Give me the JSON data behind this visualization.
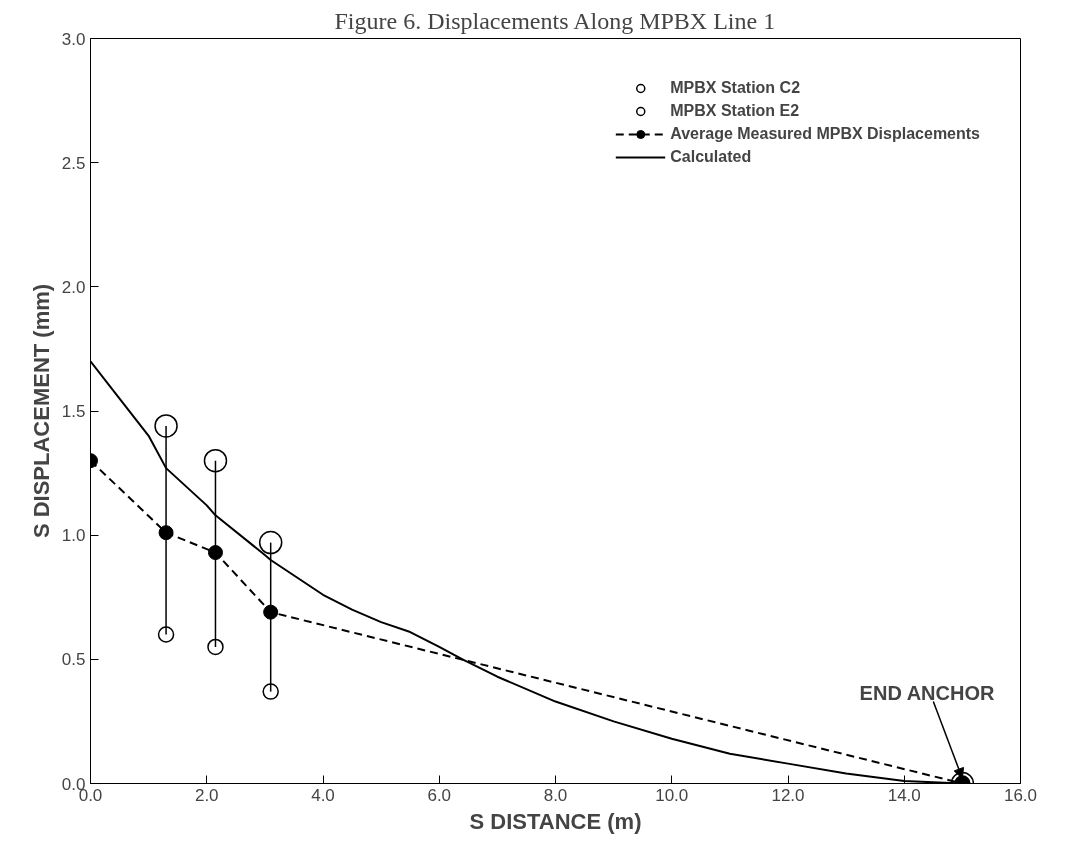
{
  "chart_data": {
    "type": "line",
    "title": "Figure 6. Displacements Along MPBX Line 1",
    "xlabel": "S DISTANCE (m)",
    "ylabel": "S DISPLACEMENT (mm)",
    "xlim": [
      0,
      16
    ],
    "ylim": [
      0,
      3
    ],
    "xticks": [
      {
        "value": 0,
        "label": "0.0"
      },
      {
        "value": 2,
        "label": "2.0"
      },
      {
        "value": 4,
        "label": "4.0"
      },
      {
        "value": 6,
        "label": "6.0"
      },
      {
        "value": 8,
        "label": "8.0"
      },
      {
        "value": 10,
        "label": "10.0"
      },
      {
        "value": 12,
        "label": "12.0"
      },
      {
        "value": 14,
        "label": "14.0"
      },
      {
        "value": 16,
        "label": "16.0"
      }
    ],
    "yticks": [
      {
        "value": 0,
        "label": "0.0"
      },
      {
        "value": 0.5,
        "label": "0.5"
      },
      {
        "value": 1,
        "label": "1.0"
      },
      {
        "value": 1.5,
        "label": "1.5"
      },
      {
        "value": 2,
        "label": "2.0"
      },
      {
        "value": 2.5,
        "label": "2.5"
      },
      {
        "value": 3,
        "label": "3.0"
      }
    ],
    "grid": false,
    "legend": "top right",
    "series": [
      {
        "name": "MPBX Station C2",
        "type": "scatter",
        "marker": "circle",
        "color": "#000000",
        "x": [
          1.3,
          2.15,
          3.1,
          15
        ],
        "values": [
          1.44,
          1.3,
          0.97,
          0
        ]
      },
      {
        "name": "MPBX Station E2",
        "type": "scatter",
        "marker": "circle",
        "color": "#000000",
        "x": [
          1.3,
          2.15,
          3.1,
          15
        ],
        "values": [
          0.6,
          0.55,
          0.37,
          0
        ]
      },
      {
        "name": "Average Measured MPBX Displacements",
        "marker": "circle",
        "line_style": "dashed",
        "color": "#000000",
        "x": [
          0,
          1.3,
          2.15,
          3.1,
          15
        ],
        "values": [
          1.3,
          1.01,
          0.93,
          0.69,
          0
        ],
        "errors": [
          null,
          [
            0.6,
            1.44
          ],
          [
            0.55,
            1.3
          ],
          [
            0.37,
            0.97
          ],
          null
        ]
      },
      {
        "name": "Calculated",
        "marker": "none",
        "line_style": "solid",
        "color": "#000000",
        "x": [
          0,
          0.5,
          1,
          1.3,
          2,
          2.15,
          3,
          3.1,
          4,
          4.5,
          5,
          5.5,
          6,
          6.4,
          7,
          8,
          9,
          10,
          11,
          12,
          13,
          14,
          15
        ],
        "values": [
          1.7,
          1.55,
          1.4,
          1.27,
          1.12,
          1.08,
          0.92,
          0.9,
          0.76,
          0.7,
          0.65,
          0.61,
          0.55,
          0.5,
          0.43,
          0.33,
          0.25,
          0.18,
          0.12,
          0.08,
          0.04,
          0.01,
          0
        ]
      }
    ],
    "annotations": [
      {
        "text": "END ANCHOR",
        "x": 15,
        "y": 0
      }
    ]
  }
}
